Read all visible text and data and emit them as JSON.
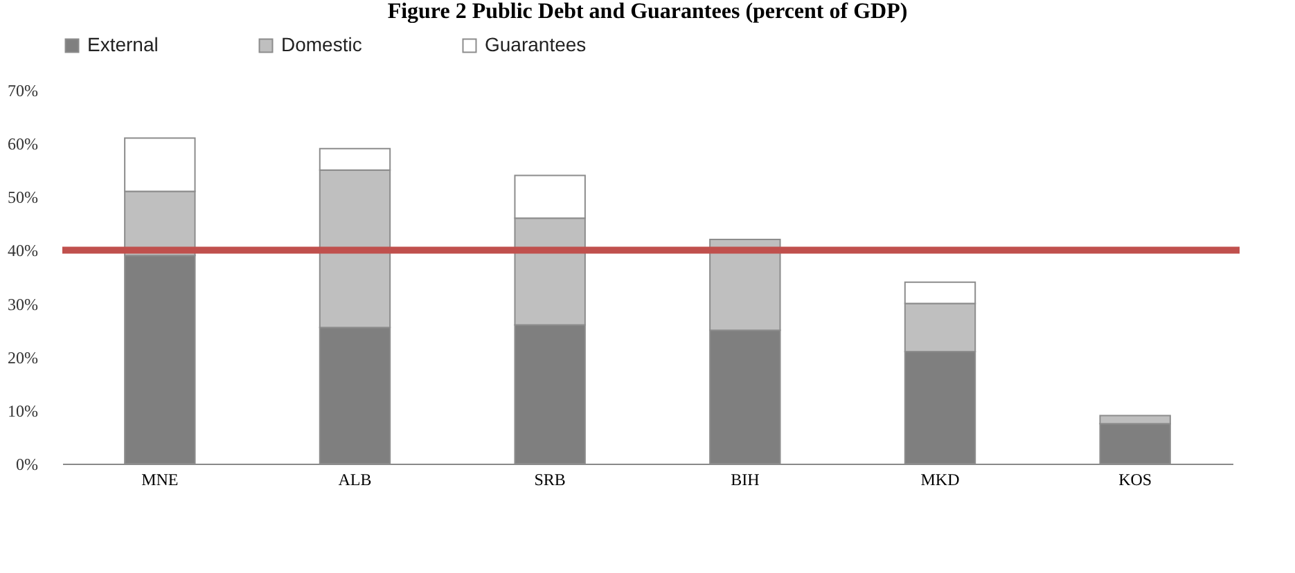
{
  "chart_data": {
    "type": "bar",
    "title": "Figure 2 Public Debt and Guarantees (percent of GDP)",
    "categories": [
      "MNE",
      "ALB",
      "SRB",
      "BIH",
      "MKD",
      "KOS"
    ],
    "stacked": true,
    "series": [
      {
        "name": "External",
        "color": "#7f7f7f",
        "values": [
          39,
          25.5,
          26,
          25,
          21,
          7.5
        ]
      },
      {
        "name": "Domestic",
        "color": "#bfbfbf",
        "values": [
          12,
          29.5,
          20,
          17,
          9,
          1.5
        ]
      },
      {
        "name": "Guarantees",
        "color": "#ffffff",
        "values": [
          10,
          4,
          8,
          null,
          4,
          null
        ]
      }
    ],
    "ylim": [
      0,
      70
    ],
    "yticks": [
      {
        "value": 0,
        "label": "0%"
      },
      {
        "value": 10,
        "label": "10%"
      },
      {
        "value": 20,
        "label": "20%"
      },
      {
        "value": 30,
        "label": "30%"
      },
      {
        "value": 40,
        "label": "40%"
      },
      {
        "value": 50,
        "label": "50%"
      },
      {
        "value": 60,
        "label": "60%"
      },
      {
        "value": 70,
        "label": "70%"
      }
    ],
    "ref_lines": [
      {
        "axis": "y",
        "value": 40,
        "color": "#c0504d"
      }
    ],
    "grid": false,
    "legend": "top"
  }
}
